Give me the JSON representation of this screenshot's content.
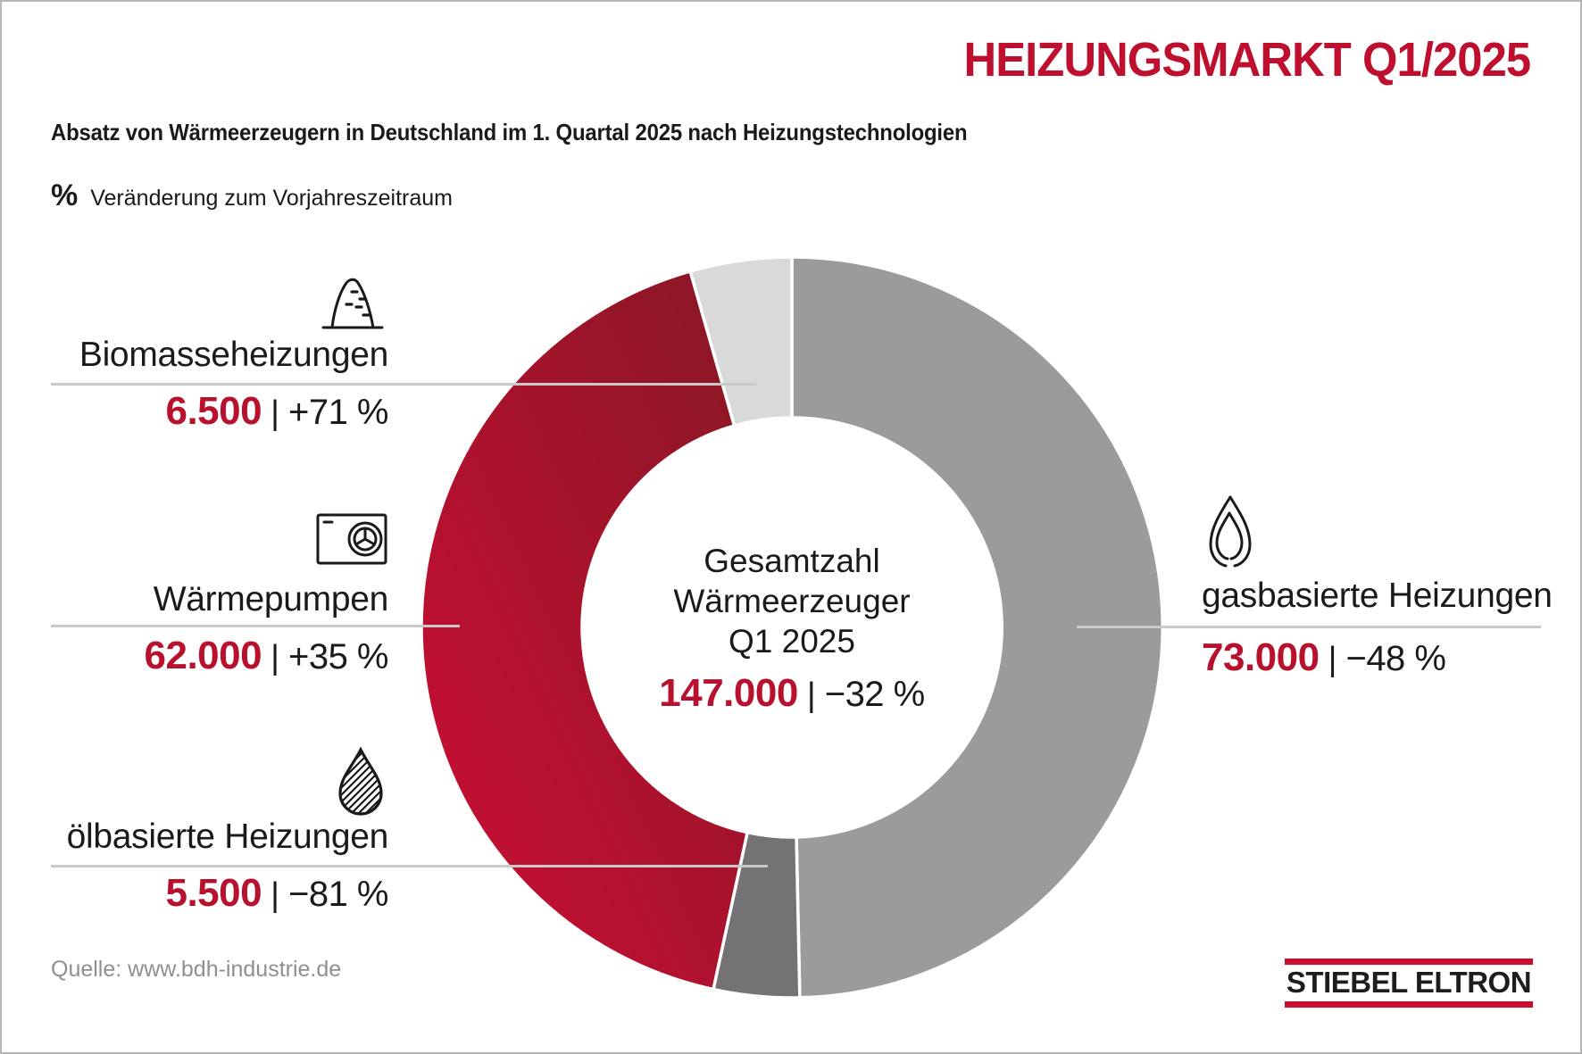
{
  "header": {
    "title": "HEIZUNGSMARKT Q1/2025",
    "subtitle": "Absatz von Wärmeerzeugern in Deutschland im 1. Quartal 2025 nach Heizungstechnologien",
    "unit_symbol": "%",
    "unit_note": "Veränderung zum Vorjahreszeitraum"
  },
  "chart_data": {
    "type": "pie",
    "subtype": "donut",
    "title": "Absatz von Wärmeerzeugern in Deutschland im 1. Quartal 2025 nach Heizungstechnologien",
    "unit_note": "% Veränderung zum Vorjahreszeitraum",
    "start_angle_deg": 0,
    "clockwise": true,
    "divider": "|",
    "center": {
      "line1": "Gesamtzahl",
      "line2": "Wärmeerzeuger",
      "line3": "Q1 2025",
      "total_label": "147.000",
      "total_change": "−32 %"
    },
    "series": [
      {
        "name": "gasbasierte Heizungen",
        "value": 73000,
        "value_label": "73.000",
        "change": "−48 %",
        "color": "#9b9b9d",
        "icon": "gas-flame-icon",
        "side": "right"
      },
      {
        "name": "ölbasierte Heizungen",
        "value": 5500,
        "value_label": "5.500",
        "change": "−81 %",
        "color": "#737376",
        "icon": "oil-drop-icon",
        "side": "left"
      },
      {
        "name": "Wärmepumpen",
        "value": 62000,
        "value_label": "62.000",
        "change": "+35 %",
        "color": "#8f1626",
        "color2": "#c50f33",
        "icon": "heat-pump-icon",
        "side": "left"
      },
      {
        "name": "Biomasseheizungen",
        "value": 6500,
        "value_label": "6.500",
        "change": "+71 %",
        "color": "#d9d9d9",
        "icon": "biomass-pile-icon",
        "side": "left"
      }
    ]
  },
  "footer": {
    "source": "Quelle: www.bdh-industrie.de",
    "logo_text": "STIEBEL ELTRON"
  },
  "colors": {
    "accent_red": "#b8112e",
    "title_red": "#be0f2e",
    "logo_red": "#c8102e",
    "heatpump_gradient_from": "#8f1626",
    "heatpump_gradient_to": "#c50f33",
    "gas_gray": "#9b9b9d",
    "oil_gray": "#737376",
    "biomass_gray": "#d9d9d9",
    "leader_line": "#c9c9c9",
    "text": "#1a1a1a",
    "source_gray": "#8f8f8f"
  }
}
